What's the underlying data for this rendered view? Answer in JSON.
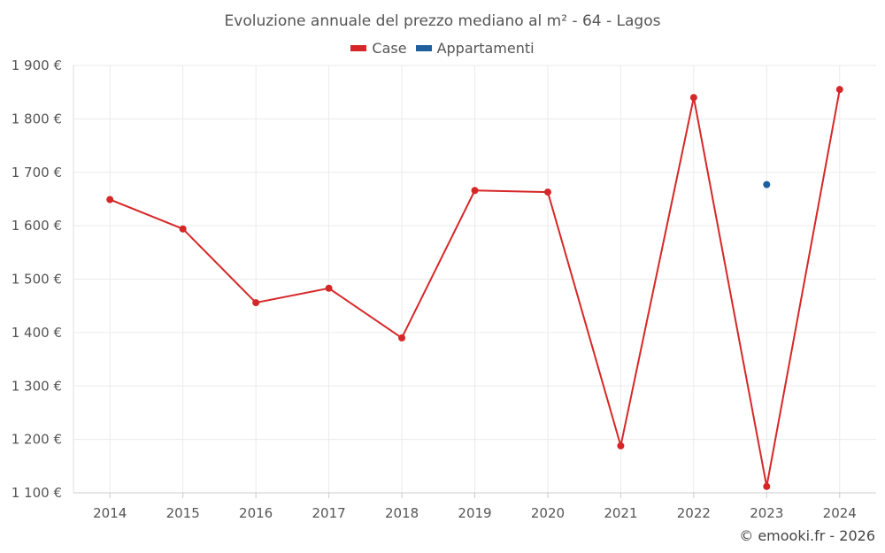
{
  "chart_data": {
    "type": "line",
    "title": "Evoluzione annuale del prezzo mediano al m² - 64 - Lagos",
    "categories": [
      "2014",
      "2015",
      "2016",
      "2017",
      "2018",
      "2019",
      "2020",
      "2021",
      "2022",
      "2023",
      "2024"
    ],
    "ylim": [
      1100,
      1900
    ],
    "yticks": [
      1100,
      1200,
      1300,
      1400,
      1500,
      1600,
      1700,
      1800,
      1900
    ],
    "ytick_labels": [
      "1 100 €",
      "1 200 €",
      "1 300 €",
      "1 400 €",
      "1 500 €",
      "1 600 €",
      "1 700 €",
      "1 800 €",
      "1 900 €"
    ],
    "grid": true,
    "legend_position": "top-center",
    "series": [
      {
        "name": "Case",
        "color": "#d62728",
        "values": [
          1649,
          1594,
          1456,
          1483,
          1390,
          1666,
          1663,
          1188,
          1840,
          1112,
          1855
        ]
      },
      {
        "name": "Appartamenti",
        "color": "#1f5f9e",
        "values": [
          null,
          null,
          null,
          null,
          null,
          null,
          null,
          null,
          null,
          1677,
          null
        ]
      }
    ]
  },
  "watermark": "© emooki.fr - 2026"
}
